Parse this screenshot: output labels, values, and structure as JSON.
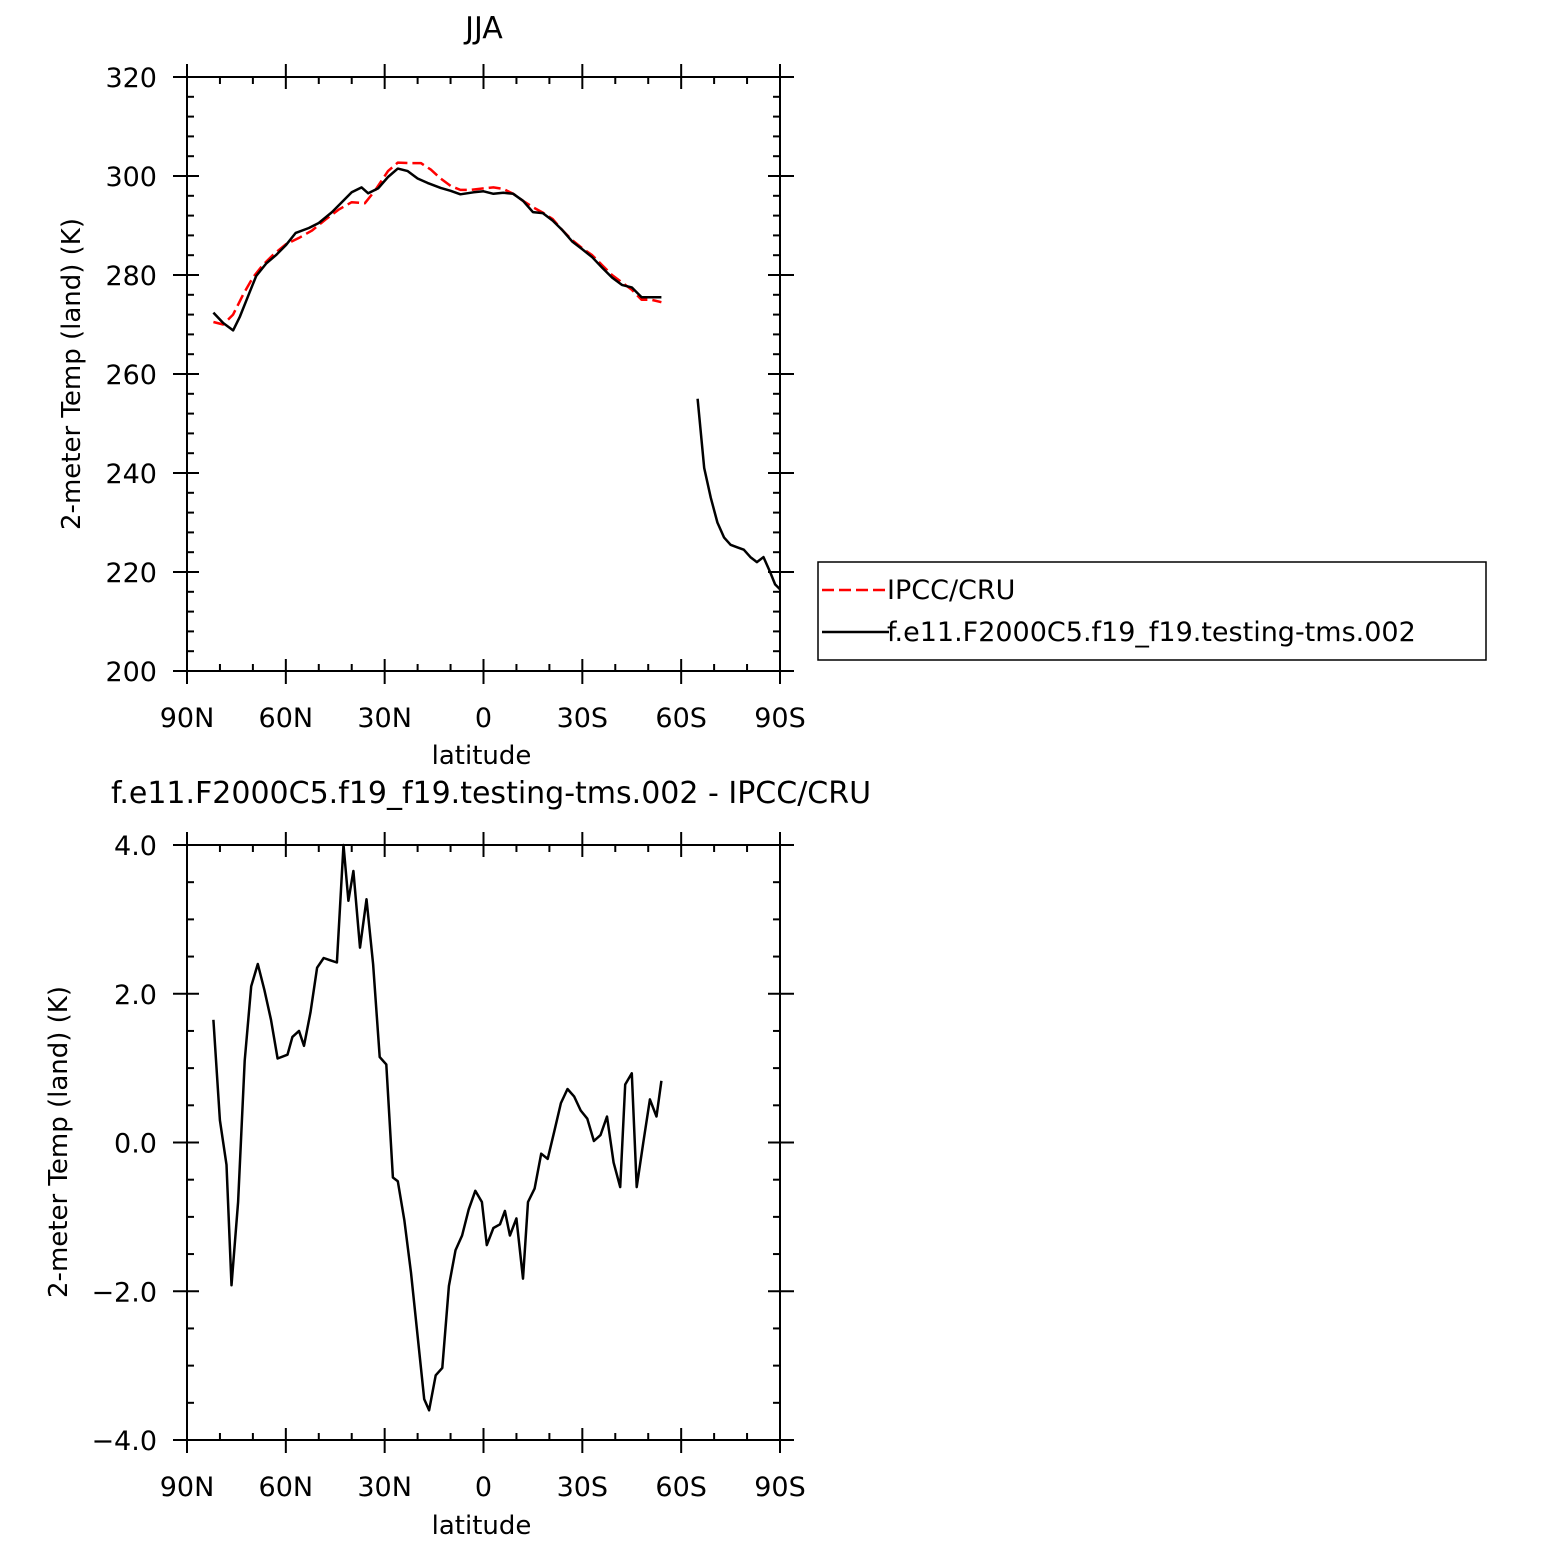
{
  "chart_data": [
    {
      "type": "line",
      "title": "JJA",
      "xlabel": "latitude",
      "ylabel": "2-meter Temp (land) (K)",
      "xlim": [
        90,
        -90
      ],
      "ylim": [
        200,
        320
      ],
      "xticks": [
        {
          "value": 90,
          "label": "90N"
        },
        {
          "value": 60,
          "label": "60N"
        },
        {
          "value": 30,
          "label": "30N"
        },
        {
          "value": 0,
          "label": "0"
        },
        {
          "value": -30,
          "label": "30S"
        },
        {
          "value": -60,
          "label": "60S"
        },
        {
          "value": -90,
          "label": "90S"
        }
      ],
      "yticks": [
        {
          "value": 200,
          "label": "200"
        },
        {
          "value": 220,
          "label": "220"
        },
        {
          "value": 240,
          "label": "240"
        },
        {
          "value": 260,
          "label": "260"
        },
        {
          "value": 280,
          "label": "280"
        },
        {
          "value": 300,
          "label": "300"
        },
        {
          "value": 320,
          "label": "320"
        }
      ],
      "legend": {
        "placement": "right",
        "entries": [
          "IPCC/CRU",
          "f.e11.F2000C5.f19_f19.testing-tms.002"
        ]
      },
      "series": [
        {
          "name": "IPCC/CRU",
          "color": "#ff0000",
          "dash": "dashed",
          "points": [
            [
              82,
              270.5
            ],
            [
              79,
              270
            ],
            [
              76,
              272
            ],
            [
              73,
              276
            ],
            [
              70,
              279.5
            ],
            [
              67,
              282
            ],
            [
              64,
              284
            ],
            [
              60,
              286.2
            ],
            [
              56,
              287.5
            ],
            [
              52,
              289
            ],
            [
              48,
              291.2
            ],
            [
              44,
              293.2
            ],
            [
              40,
              294.7
            ],
            [
              36,
              294.5
            ],
            [
              33,
              297
            ],
            [
              29,
              301
            ],
            [
              26,
              302.7
            ],
            [
              22,
              302.6
            ],
            [
              19,
              302.6
            ],
            [
              16,
              301.3
            ],
            [
              13,
              299.5
            ],
            [
              10,
              298
            ],
            [
              7,
              297.2
            ],
            [
              4,
              297.2
            ],
            [
              0,
              297.5
            ],
            [
              -3,
              297.7
            ],
            [
              -6,
              297.4
            ],
            [
              -9,
              296.4
            ],
            [
              -12,
              295
            ],
            [
              -15,
              293.7
            ],
            [
              -18,
              292.6
            ],
            [
              -21,
              291.3
            ],
            [
              -24,
              289
            ],
            [
              -27,
              287
            ],
            [
              -30,
              285.4
            ],
            [
              -33,
              284
            ],
            [
              -36,
              282
            ],
            [
              -39,
              280
            ],
            [
              -42,
              278.5
            ],
            [
              -45,
              277
            ],
            [
              -48,
              275
            ],
            [
              -51,
              275
            ],
            [
              -54,
              274.5
            ]
          ]
        },
        {
          "name": "f.e11.F2000C5.f19_f19.testing-tms.002",
          "color": "#000000",
          "dash": "solid",
          "points": [
            [
              82,
              272.4
            ],
            [
              79,
              270.3
            ],
            [
              76,
              268.8
            ],
            [
              74,
              271.5
            ],
            [
              71,
              276.5
            ],
            [
              69,
              279.8
            ],
            [
              66,
              282.3
            ],
            [
              63,
              284
            ],
            [
              60,
              286
            ],
            [
              57,
              288.5
            ],
            [
              53,
              289.5
            ],
            [
              50,
              290.5
            ],
            [
              46,
              292.7
            ],
            [
              43,
              294.7
            ],
            [
              40,
              296.7
            ],
            [
              37,
              297.7
            ],
            [
              35,
              296.5
            ],
            [
              32,
              297.5
            ],
            [
              29,
              299.8
            ],
            [
              26,
              301.5
            ],
            [
              23,
              301
            ],
            [
              20,
              299.5
            ],
            [
              17,
              298.6
            ],
            [
              13,
              297.6
            ],
            [
              10,
              297
            ],
            [
              7,
              296.3
            ],
            [
              3,
              296.7
            ],
            [
              0,
              296.9
            ],
            [
              -3,
              296.4
            ],
            [
              -6,
              296.6
            ],
            [
              -9,
              296.4
            ],
            [
              -12,
              295
            ],
            [
              -15,
              292.7
            ],
            [
              -18,
              292.5
            ],
            [
              -21,
              291
            ],
            [
              -24,
              289
            ],
            [
              -27,
              286.7
            ],
            [
              -30,
              285.2
            ],
            [
              -33,
              283.6
            ],
            [
              -36,
              281.5
            ],
            [
              -39,
              279.5
            ],
            [
              -42,
              278
            ],
            [
              -45,
              277.5
            ],
            [
              -48,
              275.5
            ],
            [
              -51,
              275.5
            ],
            [
              -54,
              275.5
            ]
          ],
          "points2": [
            [
              -65,
              255
            ],
            [
              -67,
              241
            ],
            [
              -69,
              235
            ],
            [
              -71,
              230
            ],
            [
              -73,
              227
            ],
            [
              -75,
              225.5
            ],
            [
              -77,
              225
            ],
            [
              -79,
              224.5
            ],
            [
              -81,
              223
            ],
            [
              -83,
              222
            ],
            [
              -85,
              223
            ],
            [
              -87,
              220
            ],
            [
              -88.5,
              217.5
            ],
            [
              -90,
              216.5
            ]
          ]
        }
      ]
    },
    {
      "type": "line",
      "title": "f.e11.F2000C5.f19_f19.testing-tms.002 - IPCC/CRU",
      "xlabel": "latitude",
      "ylabel": "2-meter Temp (land) (K)",
      "xlim": [
        90,
        -90
      ],
      "ylim": [
        -4,
        4
      ],
      "xticks": [
        {
          "value": 90,
          "label": "90N"
        },
        {
          "value": 60,
          "label": "60N"
        },
        {
          "value": 30,
          "label": "30N"
        },
        {
          "value": 0,
          "label": "0"
        },
        {
          "value": -30,
          "label": "30S"
        },
        {
          "value": -60,
          "label": "60S"
        },
        {
          "value": -90,
          "label": "90S"
        }
      ],
      "yticks": [
        {
          "value": -4,
          "label": "−4.0"
        },
        {
          "value": -2,
          "label": "−2.0"
        },
        {
          "value": 0,
          "label": "0.0"
        },
        {
          "value": 2,
          "label": "2.0"
        },
        {
          "value": 4,
          "label": "4.0"
        }
      ],
      "series": [
        {
          "color": "#000000",
          "dash": "solid",
          "points": [
            [
              82,
              1.65
            ],
            [
              80,
              0.3
            ],
            [
              78,
              -0.3
            ],
            [
              76.5,
              -1.92
            ],
            [
              74.5,
              -0.8
            ],
            [
              72.5,
              1.1
            ],
            [
              70.5,
              2.1
            ],
            [
              68.5,
              2.4
            ],
            [
              66.5,
              2.05
            ],
            [
              64.5,
              1.65
            ],
            [
              62.5,
              1.13
            ],
            [
              59.5,
              1.18
            ],
            [
              58,
              1.42
            ],
            [
              56,
              1.5
            ],
            [
              54.5,
              1.3
            ],
            [
              52.5,
              1.75
            ],
            [
              50.5,
              2.35
            ],
            [
              48.5,
              2.48
            ],
            [
              46.5,
              2.45
            ],
            [
              44.5,
              2.42
            ],
            [
              42.5,
              4.0
            ],
            [
              41,
              3.25
            ],
            [
              39.5,
              3.65
            ],
            [
              37.5,
              2.62
            ],
            [
              35.5,
              3.27
            ],
            [
              33.5,
              2.4
            ],
            [
              31.5,
              1.15
            ],
            [
              29.5,
              1.05
            ],
            [
              27.5,
              -0.47
            ],
            [
              26,
              -0.52
            ],
            [
              24,
              -1.05
            ],
            [
              22,
              -1.75
            ],
            [
              20,
              -2.6
            ],
            [
              18,
              -3.45
            ],
            [
              16.5,
              -3.6
            ],
            [
              14.5,
              -3.13
            ],
            [
              12.5,
              -3.03
            ],
            [
              10.5,
              -1.93
            ],
            [
              8.5,
              -1.45
            ],
            [
              6.5,
              -1.25
            ],
            [
              4.5,
              -0.9
            ],
            [
              2.5,
              -0.65
            ],
            [
              0.5,
              -0.8
            ],
            [
              -1,
              -1.38
            ],
            [
              -3,
              -1.15
            ],
            [
              -5,
              -1.1
            ],
            [
              -6.5,
              -0.92
            ],
            [
              -8,
              -1.25
            ],
            [
              -10,
              -1.02
            ],
            [
              -12,
              -1.83
            ],
            [
              -13.5,
              -0.8
            ],
            [
              -15.5,
              -0.62
            ],
            [
              -17.5,
              -0.15
            ],
            [
              -19.5,
              -0.22
            ],
            [
              -21.5,
              0.15
            ],
            [
              -23.5,
              0.53
            ],
            [
              -25.5,
              0.72
            ],
            [
              -27.5,
              0.62
            ],
            [
              -29.5,
              0.43
            ],
            [
              -31.5,
              0.32
            ],
            [
              -33.5,
              0.02
            ],
            [
              -35.5,
              0.1
            ],
            [
              -37.5,
              0.35
            ],
            [
              -39.5,
              -0.27
            ],
            [
              -41.5,
              -0.6
            ],
            [
              -43,
              0.78
            ],
            [
              -45,
              0.93
            ],
            [
              -46.5,
              -0.6
            ],
            [
              -48.5,
              0
            ],
            [
              -50.5,
              0.58
            ],
            [
              -52.5,
              0.35
            ],
            [
              -54,
              0.83
            ]
          ]
        }
      ]
    }
  ]
}
